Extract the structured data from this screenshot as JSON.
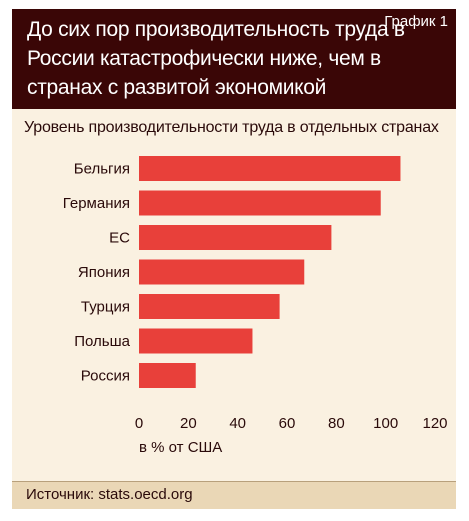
{
  "header": {
    "tag": "График 1"
  },
  "footer": {
    "source": "Источник: stats.oecd.org"
  },
  "colors": {
    "bar": "#e8403a",
    "header": "#3a0606",
    "background": "#faf1e1",
    "text": "#2a0a0a"
  },
  "chart_data": {
    "type": "bar",
    "orientation": "horizontal",
    "title": "До сих пор производительность труда в России катастрофически ниже, чем в странах с развитой экономикой",
    "subtitle": "Уровень производительности труда в отдельных странах",
    "xlabel": "в % от США",
    "categories": [
      "Бельгия",
      "Германия",
      "ЕС",
      "Япония",
      "Турция",
      "Польша",
      "Россия"
    ],
    "values": [
      106,
      98,
      78,
      67,
      57,
      46,
      23
    ],
    "xlim": [
      0,
      120
    ],
    "xticks": [
      0,
      20,
      40,
      60,
      80,
      100,
      120
    ],
    "grid": false,
    "legend": "none"
  }
}
